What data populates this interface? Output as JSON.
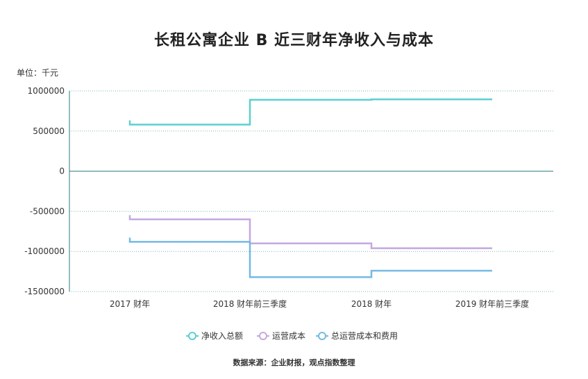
{
  "chart_data": {
    "type": "line",
    "step": true,
    "title": "长租公寓企业 B 近三财年净收入与成本",
    "unit_label": "单位：千元",
    "source": "数据来源：企业财报，观点指数整理",
    "categories": [
      "2017 财年",
      "2018 财年前三季度",
      "2018 财年",
      "2019 财年前三季度"
    ],
    "y_ticks": [
      1000000,
      500000,
      0,
      -500000,
      -1000000,
      -1500000
    ],
    "y_tick_labels": [
      "1000000",
      "500000",
      "0",
      "-500000",
      "-1000000",
      "-1500000"
    ],
    "ylim": [
      -1500000,
      1000000
    ],
    "grid": true,
    "legend_position": "bottom",
    "series": [
      {
        "name": "净收入总额",
        "color": "#5ccfcf",
        "values": [
          580000,
          890000,
          895000,
          895000
        ]
      },
      {
        "name": "运营成本",
        "color": "#c3a8e0",
        "values": [
          -600000,
          -900000,
          -960000,
          -960000
        ]
      },
      {
        "name": "总运营成本和费用",
        "color": "#74b9e4",
        "values": [
          -880000,
          -1320000,
          -1240000,
          -1240000
        ]
      }
    ]
  }
}
